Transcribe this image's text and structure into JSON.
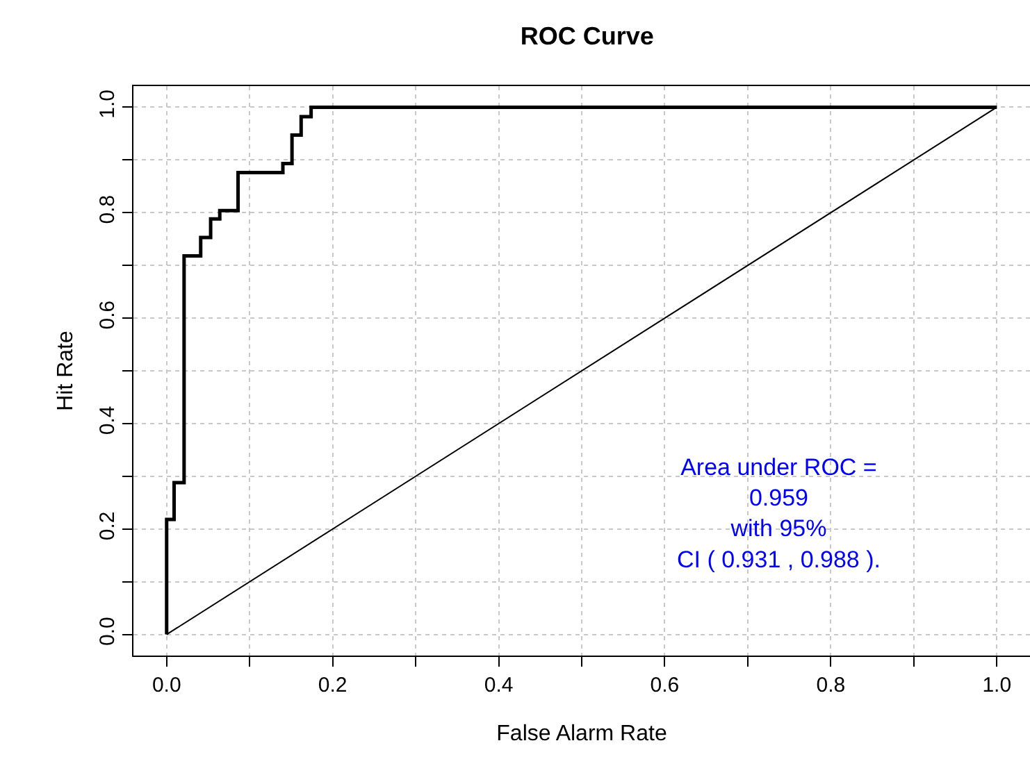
{
  "chart_data": {
    "type": "step",
    "title": "ROC Curve",
    "xlabel": "False Alarm Rate",
    "ylabel": "Hit Rate",
    "series": [
      {
        "color": "#000000",
        "x": [
          0,
          0,
          0.009,
          0.021,
          0.041,
          0.053,
          0.064,
          0.086,
          0.14,
          0.151,
          0.162,
          0.174,
          1
        ],
        "values": [
          0,
          0.218,
          0.288,
          0.718,
          0.753,
          0.788,
          0.804,
          0.876,
          0.893,
          0.947,
          0.982,
          1.0,
          1.0
        ]
      },
      {
        "type": "line",
        "color": "#000000",
        "x": [
          0,
          1
        ],
        "values": [
          0,
          1
        ]
      }
    ],
    "xlim": [
      -0.04,
      1.04
    ],
    "ylim": [
      -0.04,
      1.04
    ],
    "xticks": [
      {
        "value": 0,
        "label": "0.0"
      },
      {
        "value": 0.1,
        "label": null
      },
      0.2,
      {
        "value": 0.3,
        "label": null
      },
      0.4,
      {
        "value": 0.5,
        "label": null
      },
      0.6,
      {
        "value": 0.7,
        "label": null
      },
      0.8,
      {
        "value": 0.9,
        "label": null
      },
      {
        "value": 1,
        "label": "1.0"
      }
    ],
    "yticks": [
      {
        "value": 0,
        "label": "0.0"
      },
      {
        "value": 0.1,
        "label": null
      },
      0.2,
      {
        "value": 0.3,
        "label": null
      },
      0.4,
      {
        "value": 0.5,
        "label": null
      },
      0.6,
      {
        "value": 0.7,
        "label": null
      },
      0.8,
      {
        "value": 0.9,
        "label": null
      },
      {
        "value": 1,
        "label": "1.0"
      }
    ],
    "grid": true,
    "marker": "none",
    "line_style": "solid",
    "annotations": [
      "Area under ROC =\n0.959\nwith 95%\nCI ( 0.931 , 0.988 )."
    ]
  }
}
